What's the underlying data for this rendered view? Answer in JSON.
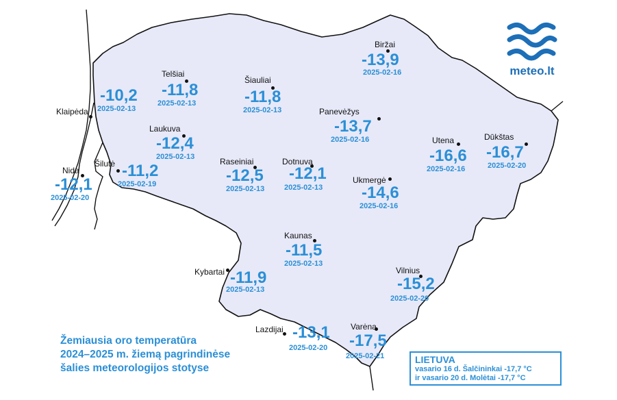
{
  "map": {
    "land_fill": "#e7e9f8",
    "border_color": "#111111",
    "text_color": "#2b8fd6"
  },
  "legend": {
    "lines": [
      "Žemiausia oro temperatūra",
      "2024–2025 m. žiemą pagrindinėse",
      "šalies meteorologijos stotyse"
    ]
  },
  "info": {
    "country": "LIETUVA",
    "line1": "vasario 16 d. Šalčininkai -17,7 °C",
    "line2": "ir vasario 20 d. Molėtai -17,7 °C"
  },
  "logo": {
    "text": "meteo.lt"
  },
  "stations": [
    {
      "name": "Biržai",
      "temp": "-13,9",
      "date": "2025-02-16"
    },
    {
      "name": "Telšiai",
      "temp": "-11,8",
      "date": "2025-02-13"
    },
    {
      "name": "Šiauliai",
      "temp": "-11,8",
      "date": "2025-02-13"
    },
    {
      "name": "Klaipėda",
      "temp": "-10,2",
      "date": "2025-02-13"
    },
    {
      "name": "Panevėžys",
      "temp": "-13,7",
      "date": "2025-02-16"
    },
    {
      "name": "Laukuva",
      "temp": "-12,4",
      "date": "2025-02-13"
    },
    {
      "name": "Utena",
      "temp": "-16,6",
      "date": "2025-02-16"
    },
    {
      "name": "Dūkštas",
      "temp": "-16,7",
      "date": "2025-02-20"
    },
    {
      "name": "Nida",
      "temp": "-12,1",
      "date": "2025-02-20"
    },
    {
      "name": "Šilutė",
      "temp": "-11,2",
      "date": "2025-02-19"
    },
    {
      "name": "Raseiniai",
      "temp": "-12,5",
      "date": "2025-02-13"
    },
    {
      "name": "Dotnuva",
      "temp": "-12,1",
      "date": "2025-02-13"
    },
    {
      "name": "Ukmergė",
      "temp": "-14,6",
      "date": "2025-02-16"
    },
    {
      "name": "Kaunas",
      "temp": "-11,5",
      "date": "2025-02-13"
    },
    {
      "name": "Kybartai",
      "temp": "-11,9",
      "date": "2025-02-13"
    },
    {
      "name": "Vilnius",
      "temp": "-15,2",
      "date": "2025-02-20"
    },
    {
      "name": "Lazdijai",
      "temp": "-13,1",
      "date": "2025-02-20"
    },
    {
      "name": "Varėna",
      "temp": "-17,5",
      "date": "2025-02-21"
    }
  ]
}
